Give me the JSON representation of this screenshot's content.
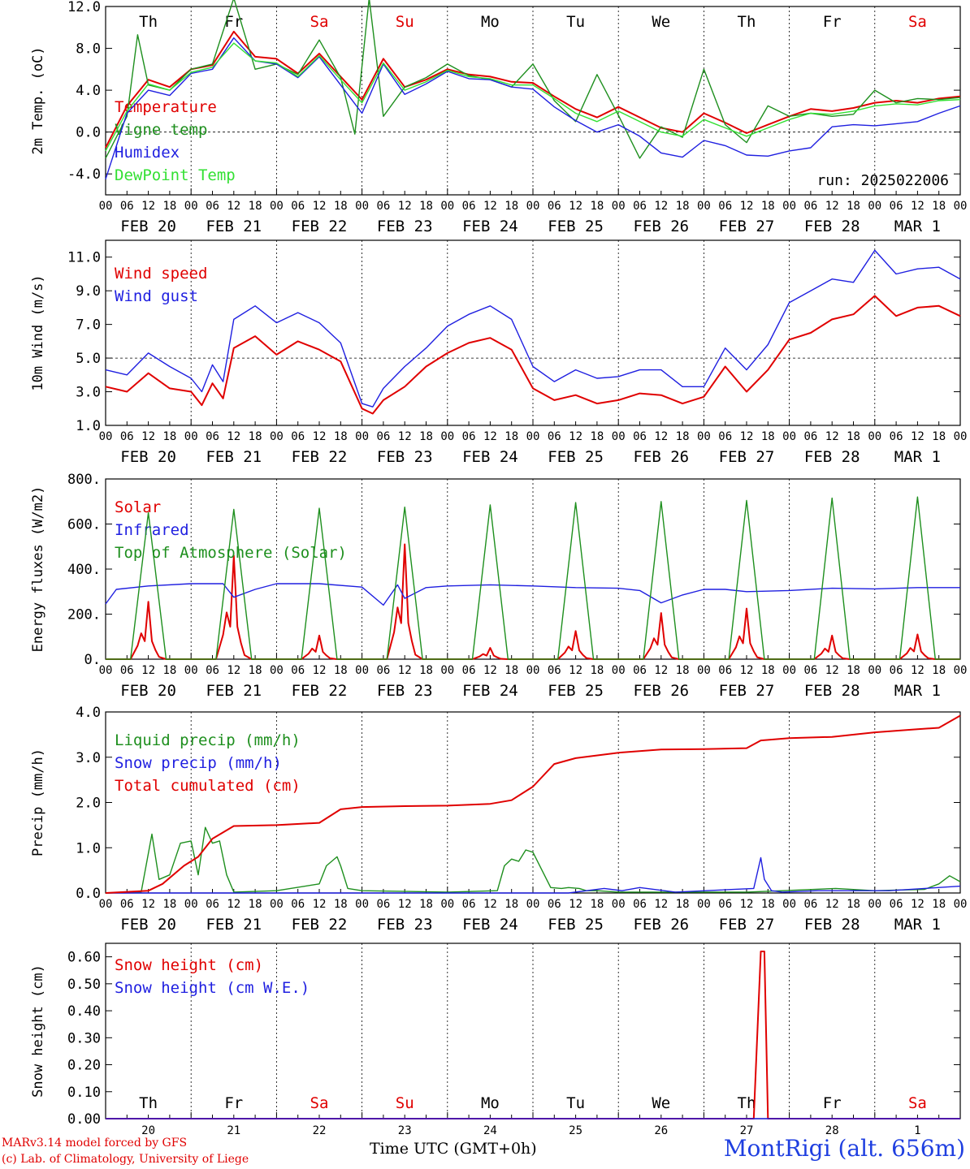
{
  "days": [
    "Th",
    "Fr",
    "Sa",
    "Su",
    "Mo",
    "Tu",
    "We",
    "Th",
    "Fr",
    "Sa"
  ],
  "day_colors": [
    "#000000",
    "#000000",
    "#e00000",
    "#e00000",
    "#000000",
    "#000000",
    "#000000",
    "#000000",
    "#000000",
    "#e00000"
  ],
  "dates": [
    "FEB 20",
    "FEB 21",
    "FEB 22",
    "FEB 23",
    "FEB 24",
    "FEB 25",
    "FEB 26",
    "FEB 27",
    "FEB 28",
    "MAR  1"
  ],
  "date_numbers": [
    "20",
    "21",
    "22",
    "23",
    "24",
    "25",
    "26",
    "27",
    "28",
    "1"
  ],
  "hour_ticks": [
    "00",
    "06",
    "12",
    "18"
  ],
  "end_tick": "00",
  "colors": {
    "red": "#e00000",
    "green": "#1e8f1e",
    "blue": "#1f1fe0",
    "lightgreen": "#33e033"
  },
  "footer": {
    "credit1": "MARv3.14 model forced by GFS",
    "credit2": "(c) Lab. of Climatology, University of Liege",
    "time_label": "Time UTC (GMT+0h)",
    "station": "MontRigi (alt. 656m)"
  },
  "chart_data": [
    {
      "type": "line",
      "ylabel": "2m Temp. (oC)",
      "yticks": [
        "12.0",
        "8.0",
        "4.0",
        "0.0",
        "-4.0"
      ],
      "ylim": [
        -6,
        12
      ],
      "ref_line": 0,
      "run_label": "run: 2025022006",
      "x_unit": "hours since FEB 20 00 UTC",
      "series": [
        {
          "name": "Temperature",
          "color": "red",
          "x": [
            0,
            6,
            12,
            18,
            24,
            30,
            36,
            42,
            48,
            54,
            60,
            66,
            72,
            78,
            84,
            90,
            96,
            102,
            108,
            114,
            120,
            126,
            132,
            138,
            144,
            150,
            156,
            162,
            168,
            174,
            180,
            186,
            192,
            198,
            204,
            210,
            216,
            222,
            228,
            234,
            240
          ],
          "y": [
            -1.5,
            2.5,
            5.0,
            4.3,
            6.0,
            6.4,
            9.6,
            7.2,
            7.0,
            5.6,
            7.5,
            5.3,
            3.1,
            7.0,
            4.3,
            5.0,
            6.0,
            5.5,
            5.3,
            4.8,
            4.7,
            3.4,
            2.2,
            1.4,
            2.4,
            1.4,
            0.4,
            0.0,
            1.8,
            0.9,
            -0.1,
            0.7,
            1.5,
            2.2,
            2.0,
            2.3,
            2.8,
            3.0,
            2.8,
            3.2,
            3.4
          ]
        },
        {
          "name": "Vigne temp",
          "color": "green",
          "x": [
            0,
            6,
            9,
            12,
            18,
            24,
            30,
            36,
            42,
            48,
            54,
            60,
            66,
            70,
            74,
            78,
            84,
            90,
            96,
            102,
            108,
            114,
            120,
            126,
            132,
            138,
            144,
            150,
            156,
            162,
            168,
            174,
            180,
            186,
            192,
            198,
            204,
            210,
            216,
            222,
            228,
            234,
            240
          ],
          "y": [
            -2.5,
            1.5,
            9.3,
            4.5,
            4.0,
            6.0,
            6.5,
            12.8,
            6.0,
            6.5,
            5.5,
            8.8,
            5.2,
            -0.2,
            12.8,
            1.5,
            4.3,
            5.2,
            6.5,
            5.4,
            5.0,
            4.3,
            6.5,
            3.0,
            1.0,
            5.5,
            1.6,
            -2.5,
            0.5,
            -0.5,
            6.0,
            0.7,
            -1.0,
            2.5,
            1.5,
            1.8,
            1.5,
            1.7,
            4.0,
            2.8,
            3.2,
            3.1,
            3.3
          ]
        },
        {
          "name": "Humidex",
          "color": "blue",
          "x": [
            0,
            6,
            12,
            18,
            24,
            30,
            36,
            42,
            48,
            54,
            60,
            66,
            72,
            78,
            84,
            90,
            96,
            102,
            108,
            114,
            120,
            126,
            132,
            138,
            144,
            150,
            156,
            162,
            168,
            174,
            180,
            186,
            192,
            198,
            204,
            210,
            216,
            222,
            228,
            234,
            240
          ],
          "y": [
            -4.5,
            1.8,
            4.0,
            3.5,
            5.6,
            6.0,
            9.0,
            6.8,
            6.5,
            5.2,
            7.2,
            4.5,
            1.8,
            6.5,
            3.6,
            4.6,
            5.8,
            5.1,
            5.0,
            4.3,
            4.1,
            2.4,
            1.1,
            0.0,
            0.7,
            -0.4,
            -2.0,
            -2.4,
            -0.8,
            -1.3,
            -2.2,
            -2.3,
            -1.8,
            -1.5,
            0.5,
            0.7,
            0.6,
            0.8,
            1.0,
            1.8,
            2.5
          ]
        },
        {
          "name": "DewPoint Temp",
          "color": "lightgreen",
          "x": [
            0,
            6,
            12,
            18,
            24,
            30,
            36,
            42,
            48,
            54,
            60,
            66,
            72,
            78,
            84,
            90,
            96,
            102,
            108,
            114,
            120,
            126,
            132,
            138,
            144,
            150,
            156,
            162,
            168,
            174,
            180,
            186,
            192,
            198,
            204,
            210,
            216,
            222,
            228,
            234,
            240
          ],
          "y": [
            -1.8,
            2.0,
            4.6,
            4.0,
            5.7,
            6.2,
            8.5,
            6.8,
            6.6,
            5.3,
            7.3,
            5.0,
            2.8,
            6.6,
            4.0,
            4.8,
            5.9,
            5.3,
            5.1,
            4.5,
            4.5,
            3.2,
            1.8,
            1.0,
            2.0,
            1.0,
            0.0,
            -0.4,
            1.2,
            0.4,
            -0.4,
            0.4,
            1.2,
            1.8,
            1.7,
            2.0,
            2.5,
            2.7,
            2.6,
            3.0,
            3.1
          ]
        }
      ]
    },
    {
      "type": "line",
      "ylabel": "10m Wind (m/s)",
      "yticks": [
        "11.0",
        "9.0",
        "7.0",
        "5.0",
        "3.0",
        "1.0"
      ],
      "ylim": [
        1,
        12
      ],
      "ref_line": 5,
      "series": [
        {
          "name": "Wind speed",
          "color": "red",
          "x": [
            0,
            6,
            12,
            18,
            24,
            27,
            30,
            33,
            36,
            42,
            48,
            54,
            60,
            66,
            72,
            75,
            78,
            84,
            90,
            96,
            102,
            108,
            114,
            120,
            126,
            132,
            138,
            144,
            150,
            156,
            162,
            168,
            174,
            180,
            186,
            192,
            198,
            204,
            210,
            216,
            222,
            228,
            234,
            240
          ],
          "y": [
            3.3,
            3.0,
            4.1,
            3.2,
            3.0,
            2.2,
            3.5,
            2.6,
            5.6,
            6.3,
            5.2,
            6.0,
            5.5,
            4.8,
            2.0,
            1.7,
            2.5,
            3.3,
            4.5,
            5.3,
            5.9,
            6.2,
            5.5,
            3.2,
            2.5,
            2.8,
            2.3,
            2.5,
            2.9,
            2.8,
            2.3,
            2.7,
            4.5,
            3.0,
            4.3,
            6.1,
            6.5,
            7.3,
            7.6,
            8.7,
            7.5,
            8.0,
            8.1,
            7.5
          ]
        },
        {
          "name": "Wind gust",
          "color": "blue",
          "x": [
            0,
            6,
            12,
            18,
            24,
            27,
            30,
            33,
            36,
            42,
            48,
            54,
            60,
            66,
            72,
            75,
            78,
            84,
            90,
            96,
            102,
            108,
            114,
            120,
            126,
            132,
            138,
            144,
            150,
            156,
            162,
            168,
            174,
            180,
            186,
            192,
            198,
            204,
            210,
            216,
            222,
            228,
            234,
            240
          ],
          "y": [
            4.3,
            4.0,
            5.3,
            4.5,
            3.8,
            3.0,
            4.6,
            3.6,
            7.3,
            8.1,
            7.1,
            7.7,
            7.1,
            5.9,
            2.3,
            2.1,
            3.2,
            4.5,
            5.6,
            6.9,
            7.6,
            8.1,
            7.3,
            4.5,
            3.6,
            4.3,
            3.8,
            3.9,
            4.3,
            4.3,
            3.3,
            3.3,
            5.6,
            4.3,
            5.8,
            8.3,
            9.0,
            9.7,
            9.5,
            11.4,
            10.0,
            10.3,
            10.4,
            9.7
          ]
        }
      ]
    },
    {
      "type": "line",
      "ylabel": "Energy fluxes (W/m2)",
      "yticks": [
        "800.",
        "600.",
        "400.",
        "200.",
        "0."
      ],
      "ylim": [
        0,
        800
      ],
      "series": [
        {
          "name": "Solar",
          "color": "red",
          "x": [
            7,
            9,
            10,
            11,
            12,
            13,
            14,
            15,
            17,
            19
          ],
          "y": [
            0,
            60,
            115,
            80,
            255,
            80,
            40,
            10,
            0,
            0
          ],
          "days_peak": [
            255,
            460,
            105,
            510,
            50,
            125,
            205,
            225,
            105,
            110
          ]
        },
        {
          "name": "Infrared",
          "color": "blue",
          "x": [
            0,
            3,
            12,
            24,
            33,
            36,
            42,
            48,
            60,
            72,
            78,
            82,
            84,
            90,
            96,
            108,
            120,
            132,
            144,
            150,
            156,
            162,
            168,
            174,
            180,
            192,
            204,
            216,
            228,
            240
          ],
          "y": [
            245,
            310,
            325,
            335,
            335,
            275,
            310,
            335,
            335,
            320,
            240,
            330,
            270,
            318,
            325,
            330,
            325,
            318,
            315,
            305,
            250,
            285,
            310,
            310,
            300,
            305,
            315,
            312,
            318,
            318
          ]
        },
        {
          "name": "Top of Atmosphere (Solar)",
          "color": "green",
          "x": [
            7,
            12,
            17
          ],
          "y": [
            0,
            650,
            0
          ],
          "days_peak": [
            650,
            665,
            670,
            675,
            685,
            695,
            700,
            705,
            715,
            720
          ]
        }
      ]
    },
    {
      "type": "line",
      "ylabel": "Precip (mm/h)",
      "yticks": [
        "4.0",
        "3.0",
        "2.0",
        "1.0",
        "0.0"
      ],
      "ylim": [
        0,
        4
      ],
      "series": [
        {
          "name": "Liquid precip (mm/h)",
          "color": "green",
          "x": [
            0,
            10,
            13,
            15,
            18,
            21,
            24,
            26,
            28,
            30,
            32,
            34,
            36,
            48,
            60,
            62,
            65,
            66,
            68,
            72,
            96,
            110,
            112,
            114,
            116,
            118,
            120,
            125,
            128,
            130,
            133,
            135,
            138,
            144,
            168,
            180,
            190,
            205,
            216,
            230,
            234,
            237,
            240
          ],
          "y": [
            0,
            0.02,
            1.3,
            0.3,
            0.4,
            1.1,
            1.15,
            0.4,
            1.45,
            1.1,
            1.15,
            0.4,
            0.02,
            0.05,
            0.2,
            0.6,
            0.8,
            0.6,
            0.1,
            0.05,
            0.02,
            0.05,
            0.6,
            0.75,
            0.7,
            0.95,
            0.9,
            0.12,
            0.1,
            0.12,
            0.1,
            0.05,
            0.05,
            0.02,
            0.02,
            0.02,
            0.05,
            0.1,
            0.05,
            0.08,
            0.2,
            0.38,
            0.25
          ]
        },
        {
          "name": "Snow precip (mm/h)",
          "color": "blue",
          "x": [
            0,
            130,
            140,
            145,
            150,
            160,
            182,
            184,
            185,
            187,
            190,
            200,
            220,
            240
          ],
          "y": [
            0,
            0,
            0.1,
            0.05,
            0.12,
            0.02,
            0.1,
            0.78,
            0.3,
            0.05,
            0.02,
            0.05,
            0.05,
            0.15
          ]
        },
        {
          "name": "Total cumulated (cm)",
          "color": "red",
          "x": [
            0,
            12,
            16,
            22,
            26,
            30,
            36,
            48,
            60,
            66,
            72,
            84,
            96,
            108,
            114,
            120,
            126,
            132,
            144,
            156,
            168,
            180,
            184,
            192,
            204,
            216,
            228,
            234,
            240
          ],
          "y": [
            0,
            0.05,
            0.2,
            0.6,
            0.8,
            1.2,
            1.48,
            1.5,
            1.55,
            1.85,
            1.9,
            1.92,
            1.93,
            1.97,
            2.05,
            2.35,
            2.85,
            2.98,
            3.1,
            3.17,
            3.18,
            3.2,
            3.37,
            3.42,
            3.45,
            3.55,
            3.62,
            3.65,
            3.92
          ]
        }
      ]
    },
    {
      "type": "line",
      "ylabel": "Snow height (cm)",
      "yticks": [
        "0.60",
        "0.50",
        "0.40",
        "0.30",
        "0.20",
        "0.10",
        "0.00"
      ],
      "ylim": [
        0,
        0.65
      ],
      "series": [
        {
          "name": "Snow height (cm)",
          "color": "red",
          "x": [
            0,
            182,
            184,
            185,
            186,
            240
          ],
          "y": [
            0,
            0,
            0.62,
            0.62,
            0,
            0
          ]
        },
        {
          "name": "Snow height (cm W.E.)",
          "color": "blue",
          "x": [
            0,
            240
          ],
          "y": [
            0,
            0
          ]
        }
      ]
    }
  ]
}
